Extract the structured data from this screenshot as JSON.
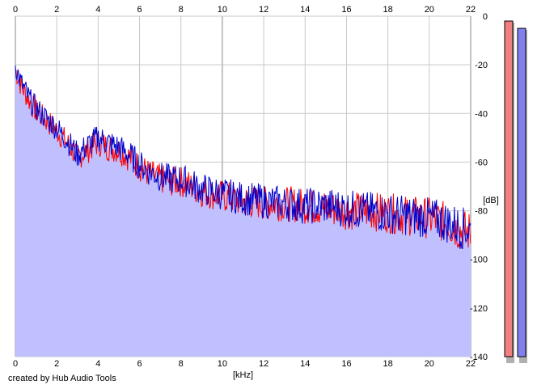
{
  "footer": {
    "credit": "created by Hub Audio Tools"
  },
  "colors": {
    "background": "#ffffff",
    "plot_background": "#ffffff",
    "fill": "#c0c0ff",
    "grid_minor": "#c8c8c8",
    "grid_major": "#888888",
    "channel_red": "#ff0000",
    "channel_blue": "#0000cc",
    "meter_red": "#f08080",
    "meter_blue": "#8080f0"
  },
  "chart_data": {
    "type": "line",
    "title": "",
    "xlabel": "[kHz]",
    "ylabel": "[dB]",
    "xlim": [
      0,
      22
    ],
    "ylim": [
      -140,
      0
    ],
    "x_ticks": [
      0,
      2,
      4,
      6,
      8,
      10,
      12,
      14,
      16,
      18,
      20,
      22
    ],
    "x_tick_labels": [
      "0",
      "2",
      "4",
      "6",
      "8",
      "10",
      "12",
      "14",
      "16",
      "18",
      "20",
      "22"
    ],
    "y_ticks": [
      0,
      -20,
      -40,
      -60,
      -80,
      -100,
      -120,
      -140
    ],
    "y_tick_labels": [
      "0",
      "-20",
      "-40",
      "-60",
      "-80",
      "-100",
      "-120",
      "-140"
    ],
    "grid": true,
    "filled_area": true,
    "x": [
      0,
      0.25,
      0.5,
      0.75,
      1,
      1.5,
      2,
      2.5,
      3,
      3.5,
      4,
      4.5,
      5,
      5.5,
      6,
      6.5,
      7,
      7.5,
      8,
      8.5,
      9,
      10,
      11,
      12,
      13,
      14,
      15,
      16,
      17,
      18,
      19,
      20,
      20.5,
      21,
      21.5,
      22
    ],
    "series": [
      {
        "color": "#ff0000",
        "values": [
          -22,
          -28,
          -32,
          -36,
          -39,
          -43,
          -47,
          -52,
          -58,
          -55,
          -52,
          -54,
          -55,
          -58,
          -62,
          -65,
          -67,
          -68,
          -68,
          -70,
          -72,
          -74,
          -76,
          -77,
          -77,
          -78,
          -79,
          -80,
          -80,
          -81,
          -82,
          -83,
          -84,
          -86,
          -88,
          -89
        ]
      },
      {
        "color": "#0000cc",
        "values": [
          -20,
          -27,
          -31,
          -35,
          -38,
          -42,
          -46,
          -51,
          -57,
          -53,
          -50,
          -52,
          -54,
          -57,
          -61,
          -64,
          -66,
          -67,
          -67,
          -69,
          -71,
          -73,
          -75,
          -76,
          -77,
          -78,
          -78,
          -79,
          -80,
          -81,
          -82,
          -83,
          -84,
          -85,
          -87,
          -88
        ]
      }
    ],
    "meters": [
      {
        "color": "#f08080",
        "value_db": -2
      },
      {
        "color": "#8080f0",
        "value_db": -5
      }
    ]
  }
}
